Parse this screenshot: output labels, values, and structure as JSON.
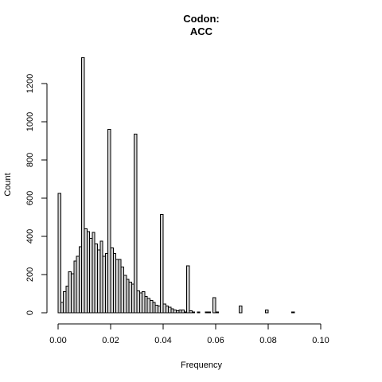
{
  "chart_data": {
    "type": "bar",
    "title_line1": "Codon:",
    "title_line2": "ACC",
    "xlabel": "Frequency",
    "ylabel": "Count",
    "bin_width": 0.001,
    "xlim": [
      0,
      0.11
    ],
    "ylim": [
      0,
      1340
    ],
    "x_ticks": [
      {
        "value": 0.0,
        "label": "0.00"
      },
      {
        "value": 0.02,
        "label": "0.02"
      },
      {
        "value": 0.04,
        "label": "0.04"
      },
      {
        "value": 0.06,
        "label": "0.06"
      },
      {
        "value": 0.08,
        "label": "0.08"
      },
      {
        "value": 0.1,
        "label": "0.10"
      }
    ],
    "y_ticks": [
      {
        "value": 0,
        "label": "0"
      },
      {
        "value": 200,
        "label": "200"
      },
      {
        "value": 400,
        "label": "400"
      },
      {
        "value": 600,
        "label": "600"
      },
      {
        "value": 800,
        "label": "800"
      },
      {
        "value": 1000,
        "label": "1000"
      },
      {
        "value": 1200,
        "label": "1200"
      }
    ],
    "bins_start": [
      0.0,
      0.001,
      0.002,
      0.003,
      0.004,
      0.005,
      0.006,
      0.007,
      0.008,
      0.009,
      0.01,
      0.011,
      0.012,
      0.013,
      0.014,
      0.015,
      0.016,
      0.017,
      0.018,
      0.019,
      0.02,
      0.021,
      0.022,
      0.023,
      0.024,
      0.025,
      0.026,
      0.027,
      0.028,
      0.029,
      0.03,
      0.031,
      0.032,
      0.033,
      0.034,
      0.035,
      0.036,
      0.037,
      0.038,
      0.039,
      0.04,
      0.041,
      0.042,
      0.043,
      0.044,
      0.045,
      0.046,
      0.047,
      0.048,
      0.049,
      0.05,
      0.051,
      0.052,
      0.053,
      0.054,
      0.055,
      0.056,
      0.057,
      0.058,
      0.059,
      0.06,
      0.061,
      0.062,
      0.063,
      0.064,
      0.065,
      0.066,
      0.067,
      0.068,
      0.069,
      0.07,
      0.071,
      0.072,
      0.073,
      0.074,
      0.075,
      0.076,
      0.077,
      0.078,
      0.079,
      0.08,
      0.081,
      0.082,
      0.083,
      0.084,
      0.085,
      0.086,
      0.087,
      0.088,
      0.089,
      0.09,
      0.091,
      0.092,
      0.093,
      0.094,
      0.095,
      0.096,
      0.097,
      0.098,
      0.099,
      0.1,
      0.101,
      0.102,
      0.103,
      0.104,
      0.105,
      0.106,
      0.107,
      0.108,
      0.109
    ],
    "values": [
      625,
      55,
      110,
      140,
      215,
      205,
      270,
      295,
      345,
      1335,
      440,
      425,
      390,
      420,
      360,
      330,
      375,
      295,
      310,
      960,
      340,
      310,
      280,
      280,
      240,
      195,
      175,
      160,
      150,
      935,
      115,
      105,
      110,
      85,
      75,
      65,
      55,
      40,
      35,
      515,
      45,
      35,
      30,
      20,
      15,
      10,
      15,
      15,
      5,
      245,
      10,
      5,
      0,
      5,
      0,
      0,
      5,
      5,
      0,
      80,
      5,
      0,
      0,
      0,
      0,
      0,
      0,
      0,
      0,
      35,
      0,
      0,
      0,
      0,
      0,
      0,
      0,
      0,
      0,
      15,
      0,
      0,
      0,
      0,
      0,
      0,
      0,
      0,
      0,
      5,
      0,
      0,
      0,
      0,
      0,
      0,
      0,
      0,
      0,
      0,
      0,
      0,
      0,
      0,
      0,
      0,
      0,
      0,
      0,
      0
    ]
  }
}
